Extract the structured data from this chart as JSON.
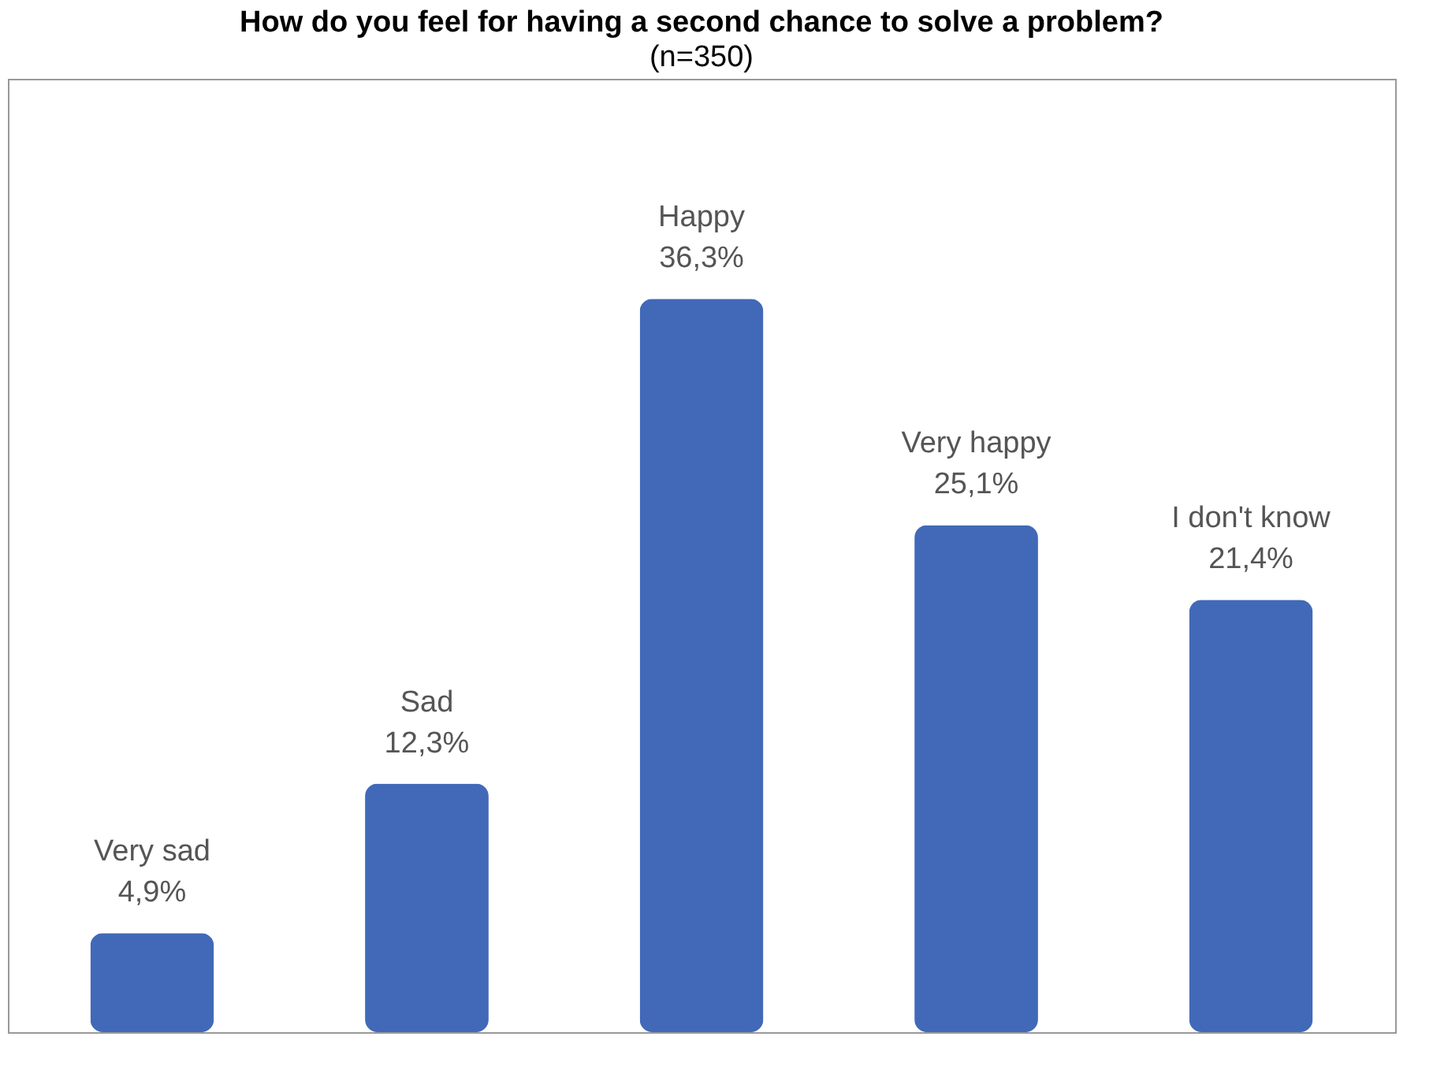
{
  "chart_data": {
    "type": "bar",
    "title": "How do you feel for having a second chance to solve a problem?",
    "subtitle": "(n=350)",
    "categories": [
      "Very sad",
      "Sad",
      "Happy",
      "Very happy",
      "I don't know"
    ],
    "values": [
      4.9,
      12.3,
      36.3,
      25.1,
      21.4
    ],
    "value_labels": [
      "4,9%",
      "12,3%",
      "36,3%",
      "25,1%",
      "21,4%"
    ],
    "color": "#4169b8"
  }
}
